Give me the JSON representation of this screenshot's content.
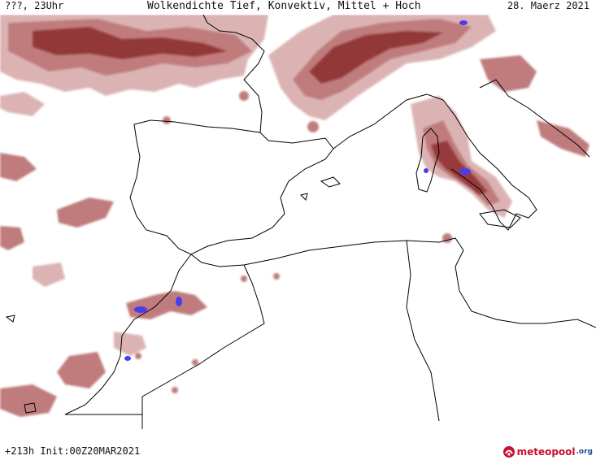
{
  "header": {
    "run_time": "???, 23Uhr",
    "title": "Wolkendichte  Tief, Konvektiv, Mittel + Hoch",
    "valid_date": "28. Maerz 2021"
  },
  "footer": {
    "forecast_info": "+213h Init:00Z20MAR2021",
    "brand_main": "meteopool",
    "brand_suffix": ".org"
  },
  "colors": {
    "cloud_light": "#dcb3b3",
    "cloud_mid": "#c07b7b",
    "cloud_dark": "#8b2b2b",
    "convective": "#4a3cf0",
    "coastline": "#000000",
    "background": "#ffffff"
  },
  "icons": {
    "logo": "meteopool-logo-icon"
  }
}
